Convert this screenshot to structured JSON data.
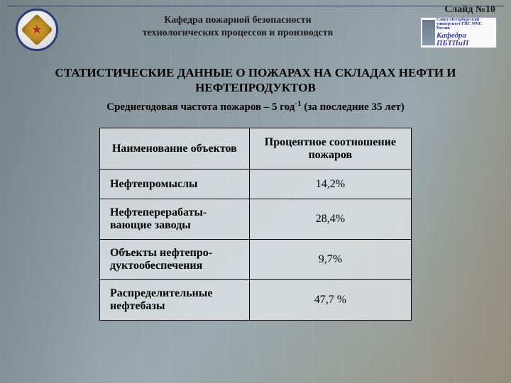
{
  "slide_number": "Слайд №10",
  "department": {
    "line1": "Кафедра пожарной безопасности",
    "line2": "технологических процессов и производств"
  },
  "logo": {
    "small_text": "Санкт-Петербургский университет ГПС МЧС России",
    "main_text": "Кафедра ПБТПиП"
  },
  "title": "СТАТИСТИЧЕСКИЕ ДАННЫЕ О ПОЖАРАХ НА СКЛАДАХ НЕФТИ И НЕФТЕПРОДУКТОВ",
  "subtitle_pre": "Среднегодовая частота пожаров – 5 год",
  "subtitle_sup": "-1",
  "subtitle_post": " (за последние 35 лет)",
  "table": {
    "type": "table",
    "background_color": "rgba(230,232,234,0.75)",
    "border_color": "#000000",
    "font_family": "Times New Roman",
    "header_fontsize": 16,
    "cell_fontsize": 16,
    "columns": [
      {
        "label": "Наименование объектов",
        "width_pct": 48,
        "align": "left"
      },
      {
        "label": "Процентное соотношение пожаров",
        "width_pct": 52,
        "align": "center"
      }
    ],
    "rows": [
      {
        "name": "Нефтепромыслы",
        "value": "14,2%"
      },
      {
        "name": "Нефтеперерабаты-вающие заводы",
        "value": "28,4%"
      },
      {
        "name": "Объекты нефтепро-дуктообеспечения",
        "value": "9,7%"
      },
      {
        "name": "Распределительные нефтебазы",
        "value": "47,7 %"
      }
    ]
  },
  "colors": {
    "bg_gradient_start": "#7a8a8f",
    "bg_gradient_end": "#9a9585",
    "text": "#000000",
    "emblem_border": "#2a3a7a",
    "emblem_gold": "#d4a830",
    "logo_text": "#3040b0"
  }
}
